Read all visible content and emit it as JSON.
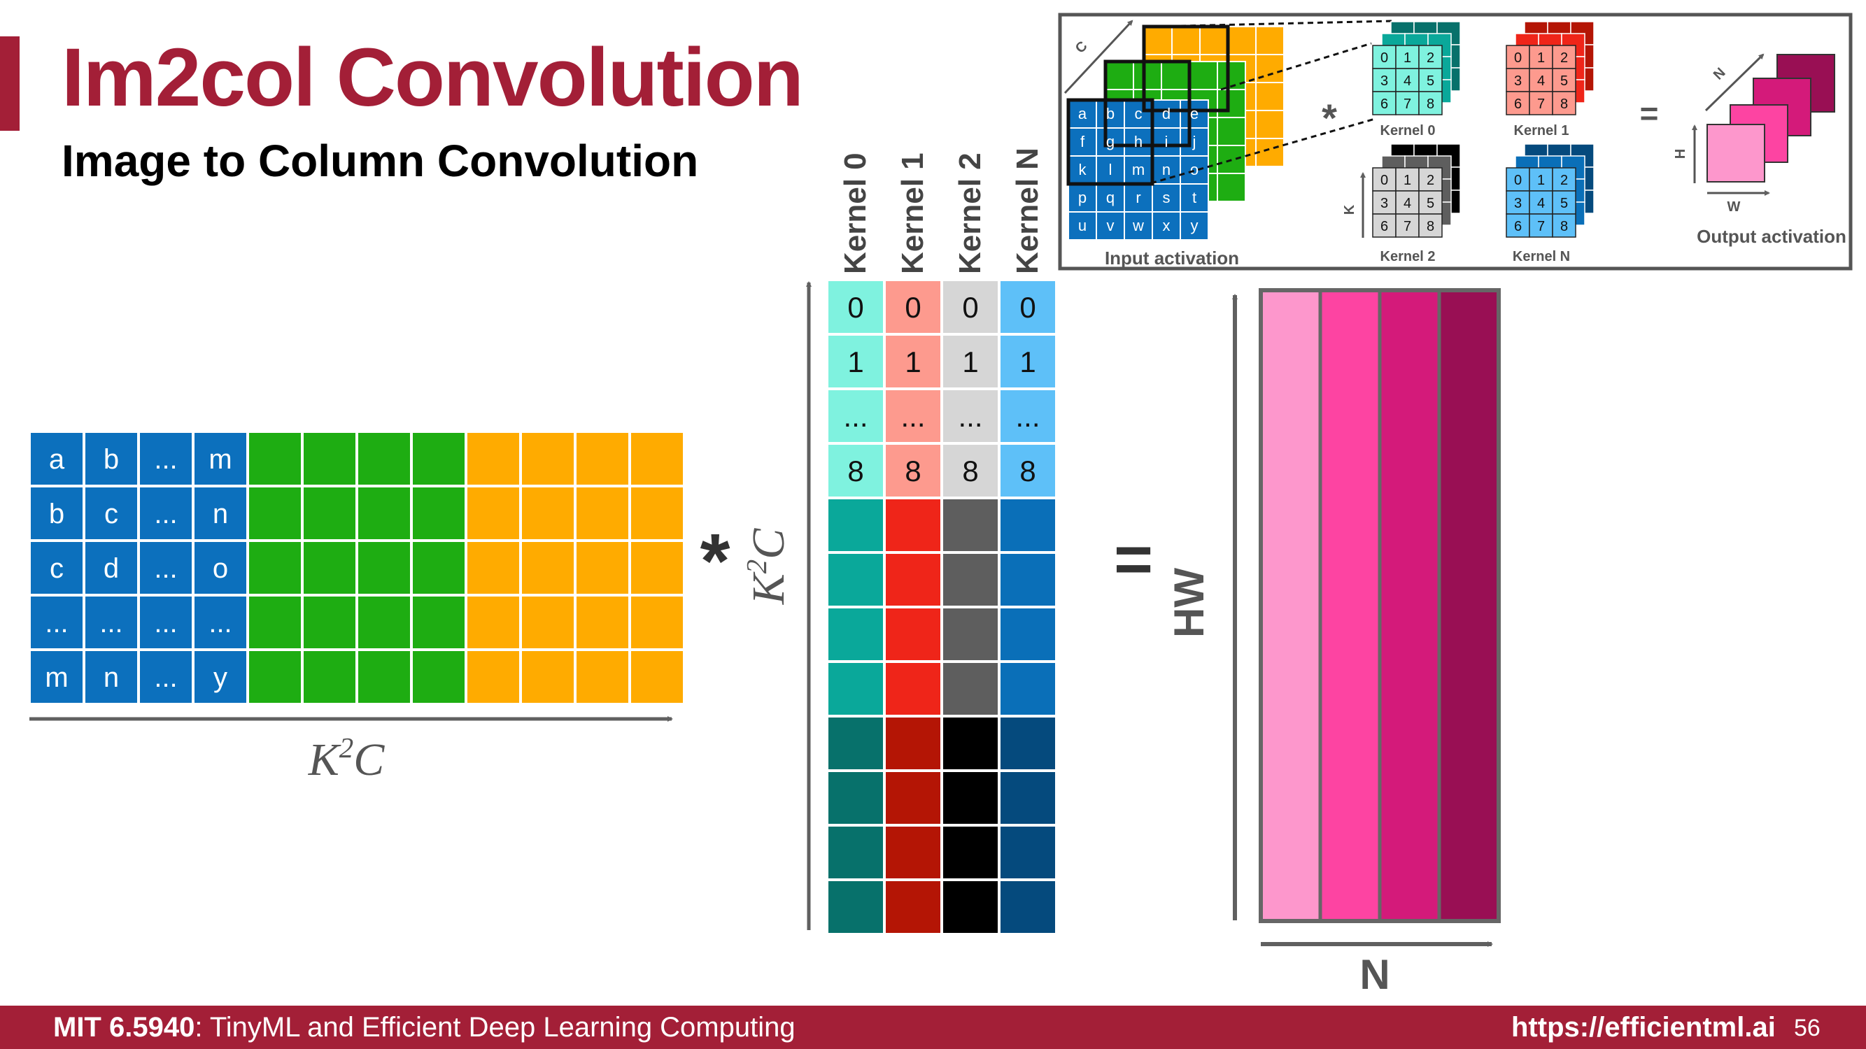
{
  "slide": {
    "title": "Im2col Convolution",
    "subtitle": "Image to Column Convolution",
    "page_number": "56"
  },
  "footer": {
    "course_code": "MIT 6.5940",
    "course_name": ": TinyML and Efficient Deep Learning Computing",
    "url": "https://efficientml.ai"
  },
  "colors": {
    "brand": "#a31f37",
    "blue": "#0c70bd",
    "green": "#1ead12",
    "orange": "#ffab00",
    "arrow": "#606060"
  },
  "input_matrix": {
    "rows": [
      [
        "a",
        "b",
        "...",
        "m"
      ],
      [
        "b",
        "c",
        "...",
        "n"
      ],
      [
        "c",
        "d",
        "...",
        "o"
      ],
      [
        "...",
        "...",
        "...",
        "..."
      ],
      [
        "m",
        "n",
        "...",
        "y"
      ]
    ],
    "axis_label_base": "K",
    "axis_label_sup": "2",
    "axis_label_tail": "C"
  },
  "operators": {
    "multiply": "*",
    "equals": "="
  },
  "kernel_matrix": {
    "headers": [
      "Kernel 0",
      "Kernel 1",
      "Kernel 2",
      "Kernel N"
    ],
    "index_rows": [
      "0",
      "1",
      "...",
      "8"
    ],
    "axis_label_base": "K",
    "axis_label_sup": "2",
    "axis_label_tail": "C",
    "column_colors": {
      "light": [
        "#7ff2df",
        "#fd9a8e",
        "#d6d6d6",
        "#5ec0f8"
      ],
      "mid": [
        "#0aa89a",
        "#ef2519",
        "#5e5e5e",
        "#0a6fb8"
      ],
      "dark": [
        "#07716b",
        "#b41505",
        "#000000",
        "#054a7d"
      ]
    }
  },
  "output_matrix": {
    "row_axis_label": "HW",
    "col_axis_label": "N",
    "column_colors": [
      "#fd97cc",
      "#fd44a2",
      "#d41a7a",
      "#990f54"
    ]
  },
  "inset": {
    "input_label": "Input activation",
    "output_label": "Output activation",
    "kernels": [
      {
        "label": "Kernel 0",
        "colors": [
          "#7ff2df",
          "#0aa89a",
          "#07716b"
        ]
      },
      {
        "label": "Kernel 1",
        "colors": [
          "#fd9a8e",
          "#ef2519",
          "#b41505"
        ]
      },
      {
        "label": "Kernel 2",
        "colors": [
          "#d6d6d6",
          "#5e5e5e",
          "#000000"
        ]
      },
      {
        "label": "Kernel N",
        "colors": [
          "#5ec0f8",
          "#0a6fb8",
          "#054a7d"
        ]
      }
    ],
    "kernel_values": [
      "0",
      "1",
      "2",
      "3",
      "4",
      "5",
      "6",
      "7",
      "8"
    ],
    "input_letters": [
      "a",
      "b",
      "c",
      "d",
      "e",
      "f",
      "g",
      "h",
      "i",
      "j",
      "k",
      "l",
      "m",
      "n",
      "o",
      "p",
      "q",
      "r",
      "s",
      "t",
      "u",
      "v",
      "w",
      "x",
      "y"
    ],
    "axis_c": "C",
    "axis_k": "K",
    "axis_h": "H",
    "axis_w": "W",
    "axis_n": "N",
    "operator_multiply": "*",
    "operator_equals": "=",
    "output_colors": [
      "#fd97cc",
      "#fd44a2",
      "#d41a7a",
      "#990f54"
    ]
  }
}
